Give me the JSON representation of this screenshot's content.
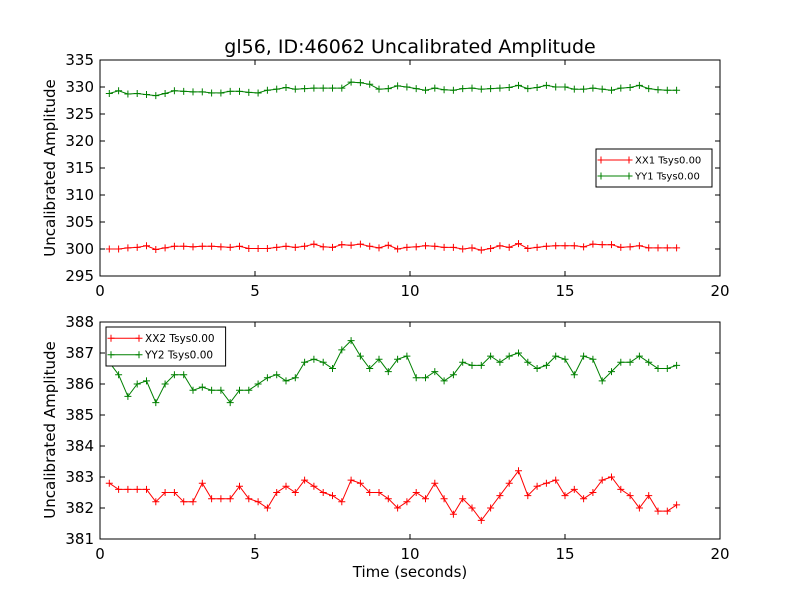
{
  "title": "gl56, ID:46062 Uncalibrated Amplitude",
  "xlabel": "Time (seconds)",
  "chart_data": [
    {
      "type": "line",
      "ylabel": "Uncalibrated Amplitude",
      "xlim": [
        0,
        20
      ],
      "ylim": [
        295,
        335
      ],
      "xticks": [
        0,
        5,
        10,
        15,
        20
      ],
      "yticks": [
        295,
        300,
        305,
        310,
        315,
        320,
        325,
        330,
        335
      ],
      "legend_position": "center-right",
      "x": [
        0.3,
        0.6,
        0.9,
        1.2,
        1.5,
        1.8,
        2.1,
        2.4,
        2.7,
        3.0,
        3.3,
        3.6,
        3.9,
        4.2,
        4.5,
        4.8,
        5.1,
        5.4,
        5.7,
        6.0,
        6.3,
        6.6,
        6.9,
        7.2,
        7.5,
        7.8,
        8.1,
        8.4,
        8.7,
        9.0,
        9.3,
        9.6,
        9.9,
        10.2,
        10.5,
        10.8,
        11.1,
        11.4,
        11.7,
        12.0,
        12.3,
        12.6,
        12.9,
        13.2,
        13.5,
        13.8,
        14.1,
        14.4,
        14.7,
        15.0,
        15.3,
        15.6,
        15.9,
        16.2,
        16.5,
        16.8,
        17.1,
        17.4,
        17.7,
        18.0,
        18.3,
        18.6
      ],
      "series": [
        {
          "name": "XX1 Tsys0.00",
          "color": "#ff0000",
          "values": [
            300.0,
            300.0,
            300.2,
            300.3,
            300.6,
            299.9,
            300.2,
            300.5,
            300.5,
            300.4,
            300.5,
            300.5,
            300.4,
            300.3,
            300.5,
            300.1,
            300.1,
            300.1,
            300.3,
            300.5,
            300.3,
            300.5,
            300.9,
            300.4,
            300.3,
            300.8,
            300.7,
            300.9,
            300.5,
            300.2,
            300.7,
            300.0,
            300.3,
            300.4,
            300.6,
            300.5,
            300.3,
            300.3,
            300.0,
            300.2,
            299.8,
            300.1,
            300.6,
            300.3,
            301.0,
            300.1,
            300.3,
            300.5,
            300.6,
            300.6,
            300.6,
            300.4,
            300.9,
            300.8,
            300.8,
            300.3,
            300.4,
            300.6,
            300.2,
            300.2,
            300.2,
            300.2
          ]
        },
        {
          "name": "YY1 Tsys0.00",
          "color": "#008000",
          "values": [
            328.8,
            329.3,
            328.7,
            328.8,
            328.6,
            328.4,
            328.8,
            329.3,
            329.2,
            329.1,
            329.1,
            328.9,
            328.9,
            329.2,
            329.2,
            329.0,
            328.9,
            329.4,
            329.6,
            329.9,
            329.6,
            329.7,
            329.8,
            329.8,
            329.8,
            329.8,
            330.9,
            330.8,
            330.5,
            329.6,
            329.7,
            330.2,
            330.0,
            329.7,
            329.4,
            329.8,
            329.5,
            329.4,
            329.7,
            329.8,
            329.6,
            329.7,
            329.8,
            329.9,
            330.3,
            329.7,
            329.9,
            330.3,
            330.0,
            330.0,
            329.6,
            329.6,
            329.8,
            329.6,
            329.4,
            329.8,
            329.9,
            330.3,
            329.7,
            329.5,
            329.4,
            329.4
          ]
        }
      ]
    },
    {
      "type": "line",
      "ylabel": "Uncalibrated Amplitude",
      "xlim": [
        0,
        20
      ],
      "ylim": [
        381,
        388
      ],
      "xticks": [
        0,
        5,
        10,
        15,
        20
      ],
      "yticks": [
        381,
        382,
        383,
        384,
        385,
        386,
        387,
        388
      ],
      "legend_position": "top-left",
      "x": [
        0.3,
        0.6,
        0.9,
        1.2,
        1.5,
        1.8,
        2.1,
        2.4,
        2.7,
        3.0,
        3.3,
        3.6,
        3.9,
        4.2,
        4.5,
        4.8,
        5.1,
        5.4,
        5.7,
        6.0,
        6.3,
        6.6,
        6.9,
        7.2,
        7.5,
        7.8,
        8.1,
        8.4,
        8.7,
        9.0,
        9.3,
        9.6,
        9.9,
        10.2,
        10.5,
        10.8,
        11.1,
        11.4,
        11.7,
        12.0,
        12.3,
        12.6,
        12.9,
        13.2,
        13.5,
        13.8,
        14.1,
        14.4,
        14.7,
        15.0,
        15.3,
        15.6,
        15.9,
        16.2,
        16.5,
        16.8,
        17.1,
        17.4,
        17.7,
        18.0,
        18.3,
        18.6
      ],
      "series": [
        {
          "name": "XX2 Tsys0.00",
          "color": "#ff0000",
          "values": [
            382.8,
            382.6,
            382.6,
            382.6,
            382.6,
            382.2,
            382.5,
            382.5,
            382.2,
            382.2,
            382.8,
            382.3,
            382.3,
            382.3,
            382.7,
            382.3,
            382.2,
            382.0,
            382.5,
            382.7,
            382.5,
            382.9,
            382.7,
            382.5,
            382.4,
            382.2,
            382.9,
            382.8,
            382.5,
            382.5,
            382.3,
            382.0,
            382.2,
            382.5,
            382.3,
            382.8,
            382.3,
            381.8,
            382.3,
            382.0,
            381.6,
            382.0,
            382.4,
            382.8,
            383.2,
            382.4,
            382.7,
            382.8,
            382.9,
            382.4,
            382.6,
            382.3,
            382.5,
            382.9,
            383.0,
            382.6,
            382.4,
            382.0,
            382.4,
            381.9,
            381.9,
            382.1
          ]
        },
        {
          "name": "YY2 Tsys0.00",
          "color": "#008000",
          "values": [
            386.7,
            386.3,
            385.6,
            386.0,
            386.1,
            385.4,
            386.0,
            386.3,
            386.3,
            385.8,
            385.9,
            385.8,
            385.8,
            385.4,
            385.8,
            385.8,
            386.0,
            386.2,
            386.3,
            386.1,
            386.2,
            386.7,
            386.8,
            386.7,
            386.5,
            387.1,
            387.4,
            386.9,
            386.5,
            386.8,
            386.4,
            386.8,
            386.9,
            386.2,
            386.2,
            386.4,
            386.1,
            386.3,
            386.7,
            386.6,
            386.6,
            386.9,
            386.7,
            386.9,
            387.0,
            386.7,
            386.5,
            386.6,
            386.9,
            386.8,
            386.3,
            386.9,
            386.8,
            386.1,
            386.4,
            386.7,
            386.7,
            386.9,
            386.7,
            386.5,
            386.5,
            386.6
          ]
        }
      ]
    }
  ]
}
